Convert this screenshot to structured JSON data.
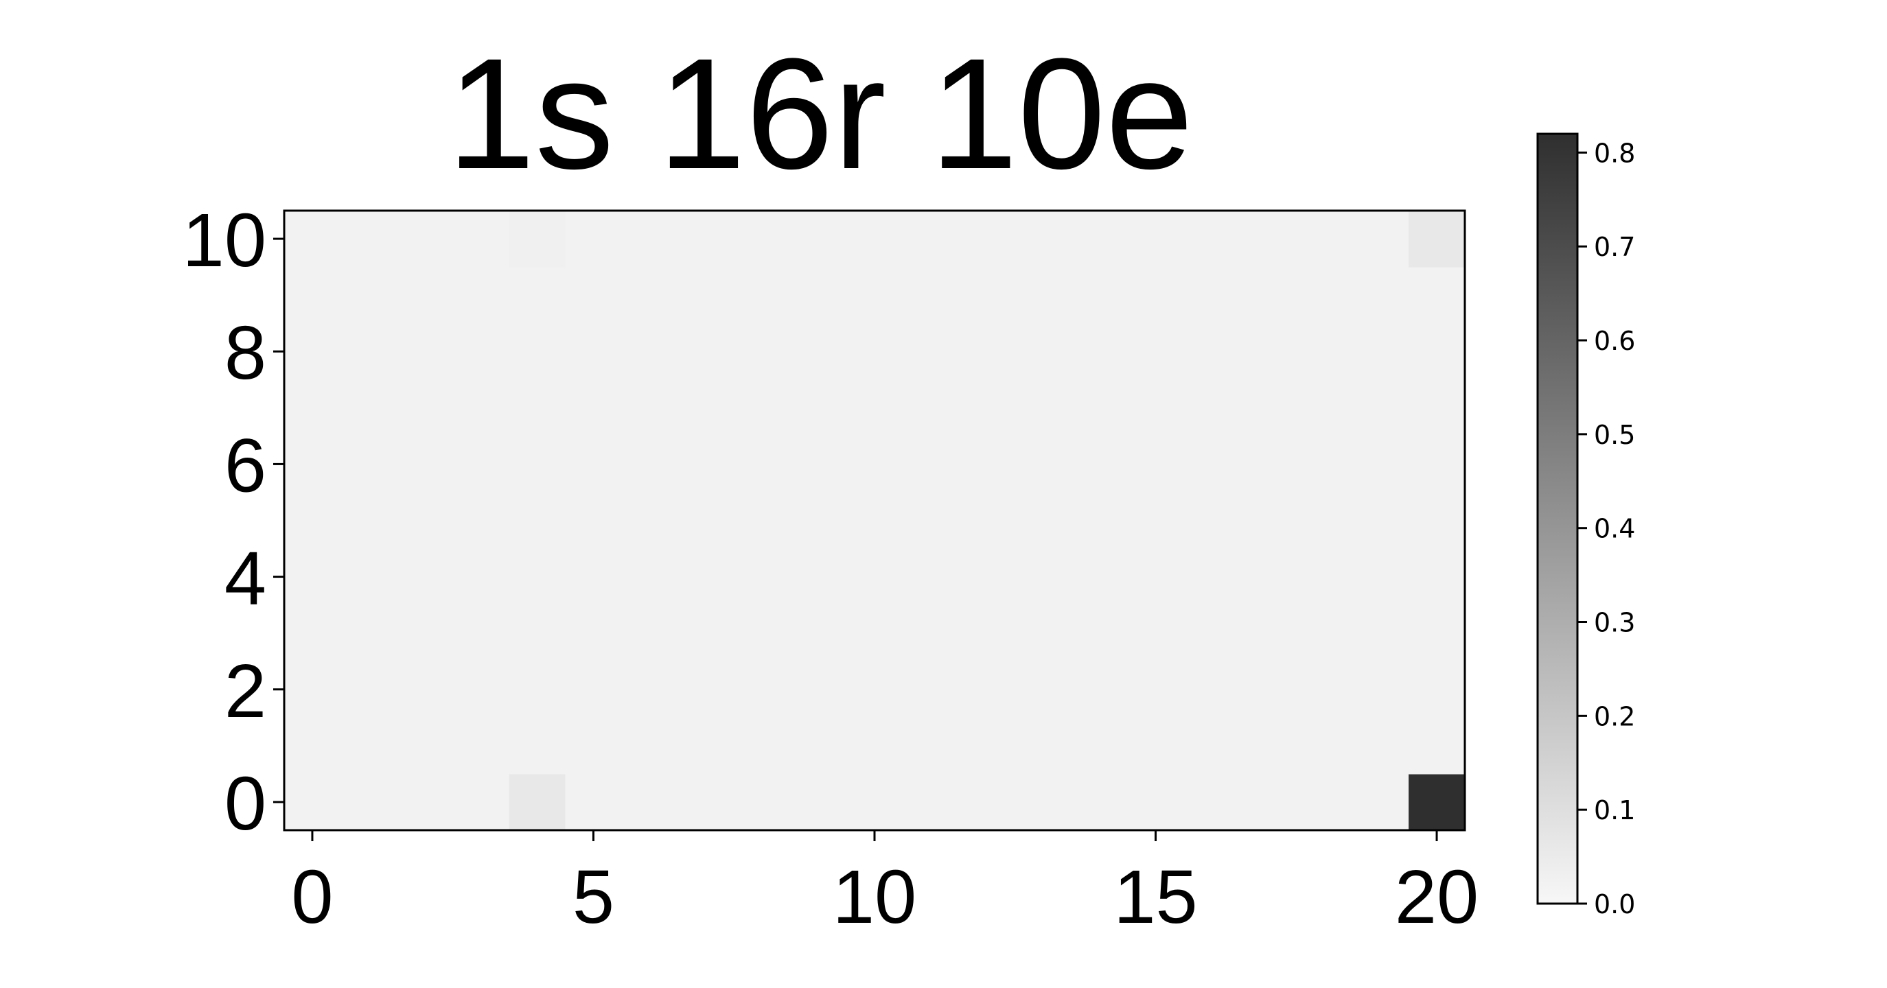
{
  "chart_data": {
    "type": "heatmap",
    "title": "1s 16r 10e",
    "colormap": "Greys",
    "x_range": [
      0,
      20
    ],
    "y_range": [
      0,
      10
    ],
    "x_ticks": [
      0,
      5,
      10,
      15,
      20
    ],
    "y_ticks": [
      0,
      2,
      4,
      6,
      8,
      10
    ],
    "background_value": 0.02,
    "highlighted_cells": [
      {
        "x": 20,
        "y": 0,
        "value": 0.82
      },
      {
        "x": 4,
        "y": 0,
        "value": 0.06
      },
      {
        "x": 20,
        "y": 10,
        "value": 0.06
      },
      {
        "x": 4,
        "y": 10,
        "value": 0.03
      }
    ],
    "colorbar": {
      "min": 0.0,
      "max": 0.82,
      "ticks": [
        "0.0",
        "0.1",
        "0.2",
        "0.3",
        "0.4",
        "0.5",
        "0.6",
        "0.7",
        "0.8"
      ],
      "light_color": "#f7f7f7",
      "dark_color": "#2f2f2f"
    },
    "grid": false
  }
}
